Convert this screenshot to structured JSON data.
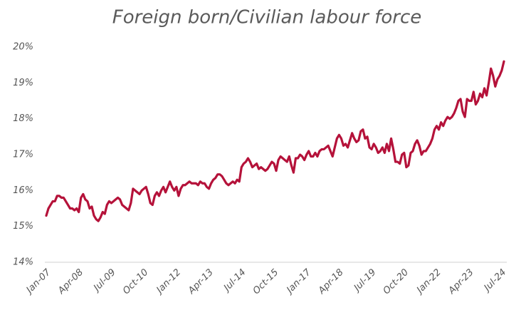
{
  "chart_data": {
    "type": "line",
    "title": "Foreign born/Civilian labour force",
    "categories": [
      "Jan-07",
      null,
      null,
      null,
      null,
      null,
      null,
      null,
      null,
      null,
      null,
      null,
      null,
      null,
      null,
      "Apr-08",
      null,
      null,
      null,
      null,
      null,
      null,
      null,
      null,
      null,
      null,
      null,
      null,
      null,
      null,
      "Jul-09",
      null,
      null,
      null,
      null,
      null,
      null,
      null,
      null,
      null,
      null,
      null,
      null,
      null,
      null,
      "Oct-10",
      null,
      null,
      null,
      null,
      null,
      null,
      null,
      null,
      null,
      null,
      null,
      null,
      null,
      null,
      "Jan-12",
      null,
      null,
      null,
      null,
      null,
      null,
      null,
      null,
      null,
      null,
      null,
      null,
      null,
      null,
      "Apr-13",
      null,
      null,
      null,
      null,
      null,
      null,
      null,
      null,
      null,
      null,
      null,
      null,
      null,
      null,
      "Jul-14",
      null,
      null,
      null,
      null,
      null,
      null,
      null,
      null,
      null,
      null,
      null,
      null,
      null,
      null,
      "Oct-15",
      null,
      null,
      null,
      null,
      null,
      null,
      null,
      null,
      null,
      null,
      null,
      null,
      null,
      null,
      "Jan-17",
      null,
      null,
      null,
      null,
      null,
      null,
      null,
      null,
      null,
      null,
      null,
      null,
      null,
      null,
      "Apr-18",
      null,
      null,
      null,
      null,
      null,
      null,
      null,
      null,
      null,
      null,
      null,
      null,
      null,
      null,
      "Jul-19",
      null,
      null,
      null,
      null,
      null,
      null,
      null,
      null,
      null,
      null,
      null,
      null,
      null,
      null,
      "Oct-20",
      null,
      null,
      null,
      null,
      null,
      null,
      null,
      null,
      null,
      null,
      null,
      null,
      null,
      null,
      "Jan-22",
      null,
      null,
      null,
      null,
      null,
      null,
      null,
      null,
      null,
      null,
      null,
      null,
      null,
      null,
      "Apr-23",
      null,
      null,
      null,
      null,
      null,
      null,
      null,
      null,
      null,
      null,
      null,
      null,
      null,
      null,
      "Jul-24",
      null
    ],
    "values": [
      15.3,
      15.5,
      15.6,
      15.7,
      15.7,
      15.85,
      15.85,
      15.8,
      15.8,
      15.7,
      15.6,
      15.5,
      15.5,
      15.45,
      15.5,
      15.4,
      15.8,
      15.9,
      15.75,
      15.7,
      15.5,
      15.55,
      15.3,
      15.2,
      15.15,
      15.25,
      15.4,
      15.35,
      15.6,
      15.7,
      15.65,
      15.7,
      15.75,
      15.8,
      15.75,
      15.6,
      15.55,
      15.5,
      15.45,
      15.65,
      16.05,
      16.0,
      15.95,
      15.9,
      16.0,
      16.05,
      16.1,
      15.9,
      15.65,
      15.6,
      15.85,
      15.95,
      15.85,
      16.0,
      16.1,
      15.95,
      16.1,
      16.25,
      16.1,
      16.0,
      16.1,
      15.85,
      16.05,
      16.15,
      16.15,
      16.2,
      16.25,
      16.2,
      16.2,
      16.2,
      16.15,
      16.25,
      16.2,
      16.2,
      16.1,
      16.05,
      16.2,
      16.3,
      16.35,
      16.45,
      16.45,
      16.4,
      16.3,
      16.2,
      16.15,
      16.2,
      16.25,
      16.2,
      16.3,
      16.25,
      16.65,
      16.75,
      16.8,
      16.9,
      16.8,
      16.65,
      16.7,
      16.75,
      16.6,
      16.65,
      16.6,
      16.55,
      16.6,
      16.7,
      16.8,
      16.75,
      16.55,
      16.85,
      16.95,
      16.9,
      16.85,
      16.8,
      16.95,
      16.7,
      16.5,
      16.9,
      16.9,
      17.0,
      16.95,
      16.85,
      17.0,
      17.1,
      16.95,
      16.95,
      17.05,
      16.95,
      17.1,
      17.15,
      17.15,
      17.2,
      17.25,
      17.1,
      16.95,
      17.2,
      17.45,
      17.55,
      17.45,
      17.25,
      17.3,
      17.2,
      17.4,
      17.6,
      17.45,
      17.35,
      17.4,
      17.65,
      17.7,
      17.45,
      17.5,
      17.2,
      17.15,
      17.3,
      17.2,
      17.05,
      17.1,
      17.2,
      17.05,
      17.3,
      17.1,
      17.45,
      17.15,
      16.8,
      16.8,
      16.75,
      17.0,
      17.05,
      16.65,
      16.7,
      17.05,
      17.1,
      17.3,
      17.4,
      17.25,
      17.0,
      17.1,
      17.1,
      17.2,
      17.3,
      17.45,
      17.7,
      17.8,
      17.7,
      17.9,
      17.8,
      17.95,
      18.05,
      18.0,
      18.05,
      18.15,
      18.3,
      18.5,
      18.55,
      18.2,
      18.05,
      18.55,
      18.5,
      18.5,
      18.75,
      18.4,
      18.5,
      18.7,
      18.6,
      18.85,
      18.65,
      19.0,
      19.4,
      19.2,
      18.9,
      19.1,
      19.2,
      19.35,
      19.6
    ],
    "color": "#b5123a",
    "ylim": [
      14,
      20
    ],
    "yticks": [
      {
        "value": 14,
        "label": "14%"
      },
      {
        "value": 15,
        "label": "15%"
      },
      {
        "value": 16,
        "label": "16%"
      },
      {
        "value": 17,
        "label": "17%"
      },
      {
        "value": 18,
        "label": "18%"
      },
      {
        "value": 19,
        "label": "19%"
      },
      {
        "value": 20,
        "label": "20%"
      }
    ]
  }
}
